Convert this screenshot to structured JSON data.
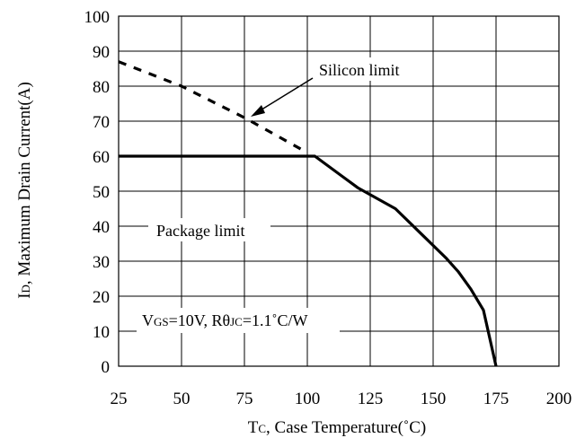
{
  "chart_data": {
    "type": "line",
    "xlabel": "Tc, Case Temperature(˚C)",
    "xlabel_parts": {
      "main": "T",
      "sub": "C",
      "rest": ", Case Temperature(˚C)"
    },
    "ylabel": "ID, Maximum Drain Current(A)",
    "ylabel_parts": {
      "main": "I",
      "sub": "D",
      "rest": ", Maximum Drain Current(A)"
    },
    "xlim": [
      25,
      200
    ],
    "ylim": [
      0,
      100
    ],
    "x_ticks": [
      25,
      50,
      75,
      100,
      125,
      150,
      175,
      200
    ],
    "y_ticks": [
      0,
      10,
      20,
      30,
      40,
      50,
      60,
      70,
      80,
      90,
      100
    ],
    "grid": true,
    "series": [
      {
        "style": "dashed",
        "x": [
          25,
          50,
          75,
          100
        ],
        "y": [
          87,
          80,
          71,
          61
        ]
      },
      {
        "style": "solid",
        "x": [
          25,
          103,
          120,
          135,
          145,
          155,
          160,
          165,
          170,
          175
        ],
        "y": [
          60,
          60,
          51,
          45,
          38,
          31,
          27,
          22,
          16,
          0
        ]
      }
    ],
    "annotations": {
      "silicon_limit": "Silicon limit",
      "package_limit": "Package limit",
      "conditions": {
        "v": "V",
        "v_sub": "GS",
        "v_rest": "=10V, R",
        "theta": "θ",
        "theta_sub": "JC",
        "theta_rest": "=1.1˚C/W"
      }
    },
    "colors": {
      "line": "#000000",
      "grid": "#000000"
    }
  }
}
